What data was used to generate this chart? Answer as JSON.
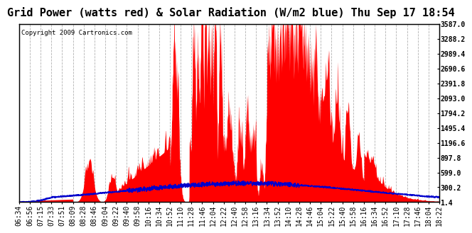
{
  "title": "Grid Power (watts red) & Solar Radiation (W/m2 blue) Thu Sep 17 18:54",
  "copyright": "Copyright 2009 Cartronics.com",
  "yticks": [
    1.4,
    300.2,
    599.0,
    897.8,
    1196.6,
    1495.4,
    1794.2,
    2093.0,
    2391.8,
    2690.6,
    2989.4,
    3288.2,
    3587.0
  ],
  "ymin": 0,
  "ymax": 3587.0,
  "xtick_labels": [
    "06:34",
    "06:56",
    "07:15",
    "07:33",
    "07:51",
    "08:09",
    "08:28",
    "08:46",
    "09:04",
    "09:22",
    "09:40",
    "09:58",
    "10:16",
    "10:34",
    "10:52",
    "11:10",
    "11:28",
    "11:46",
    "12:04",
    "12:22",
    "12:40",
    "12:58",
    "13:16",
    "13:34",
    "13:52",
    "14:10",
    "14:28",
    "14:46",
    "15:04",
    "15:22",
    "15:40",
    "15:58",
    "16:16",
    "16:34",
    "16:52",
    "17:10",
    "17:28",
    "17:46",
    "18:04",
    "18:22"
  ],
  "bg_color": "#ffffff",
  "plot_bg_color": "#ffffff",
  "grid_color": "#aaaaaa",
  "red_color": "#ff0000",
  "blue_color": "#0000cc",
  "title_fontsize": 11,
  "tick_fontsize": 7,
  "copyright_fontsize": 6.5
}
